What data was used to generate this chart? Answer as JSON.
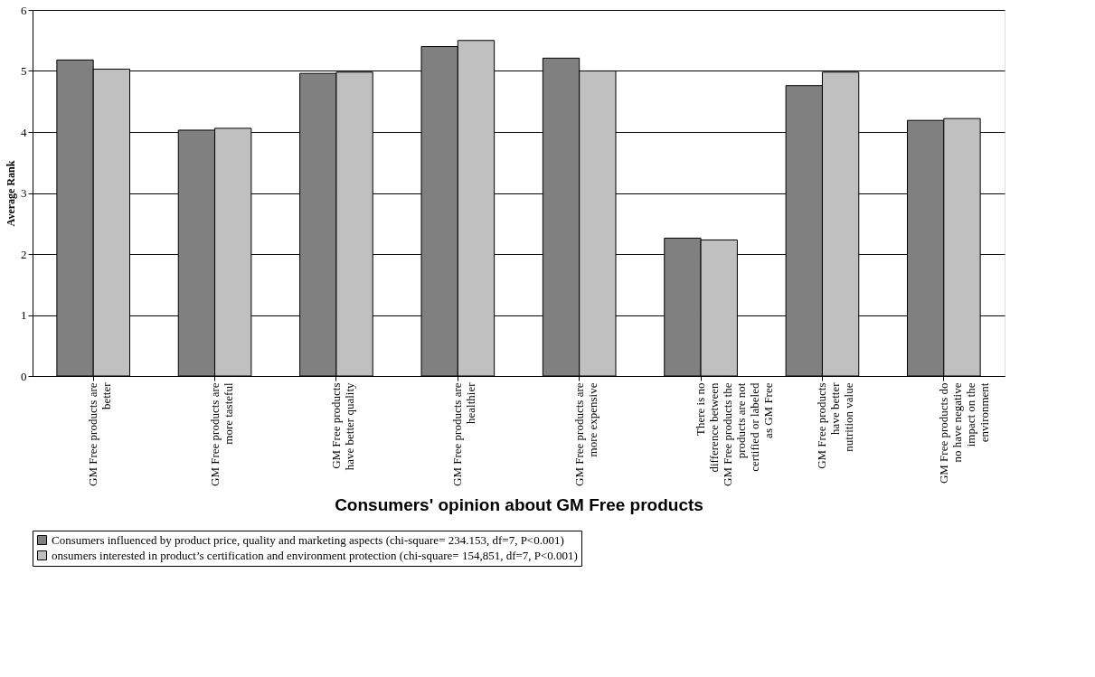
{
  "chart_data": {
    "type": "bar",
    "xlabel": "Consumers' opinion about GM Free products",
    "ylabel": "Average Rank",
    "categories": [
      "GM Free products are better",
      "GM Free products are more tasteful",
      "GM Free products have better quality",
      "GM Free products are healthier",
      "GM Free products are more expensive",
      "There is no difference between GM Free products the products are not certified or labeled as GM Free",
      "GM Free products have better nutrition value",
      "GM Free products do no have negative impact on the environment"
    ],
    "series": [
      {
        "name": "Consumers influenced by product price, quality and marketing aspects (chi-square= 234.153, df=7, P<0.001)",
        "color": "#808080",
        "values": [
          5.18,
          4.03,
          4.96,
          5.4,
          5.21,
          2.26,
          4.76,
          4.19
        ]
      },
      {
        "name": "onsumers interested in product’s certification and environment protection (chi-square= 154,851, df=7, P<0.001)",
        "color": "#c0c0c0",
        "values": [
          5.03,
          4.06,
          4.98,
          5.5,
          5.0,
          2.23,
          4.98,
          4.22
        ]
      }
    ],
    "ylim": [
      0,
      6
    ],
    "yticks": [
      0,
      1,
      2,
      3,
      4,
      5,
      6
    ],
    "grid": "y",
    "legend": "bottom"
  }
}
